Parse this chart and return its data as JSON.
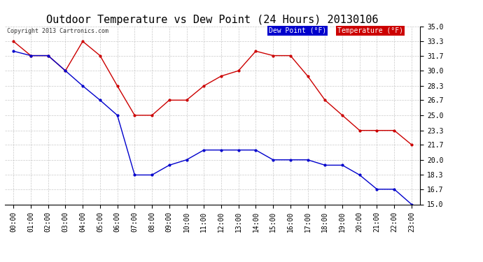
{
  "title": "Outdoor Temperature vs Dew Point (24 Hours) 20130106",
  "copyright": "Copyright 2013 Cartronics.com",
  "hours": [
    "00:00",
    "01:00",
    "02:00",
    "03:00",
    "04:00",
    "05:00",
    "06:00",
    "07:00",
    "08:00",
    "09:00",
    "10:00",
    "11:00",
    "12:00",
    "13:00",
    "14:00",
    "15:00",
    "16:00",
    "17:00",
    "18:00",
    "19:00",
    "20:00",
    "21:00",
    "22:00",
    "23:00"
  ],
  "temperature": [
    33.3,
    31.7,
    31.7,
    30.0,
    33.3,
    31.7,
    28.3,
    25.0,
    25.0,
    26.7,
    26.7,
    28.3,
    29.4,
    30.0,
    32.2,
    31.7,
    31.7,
    29.4,
    26.7,
    25.0,
    23.3,
    23.3,
    23.3,
    21.7
  ],
  "dew_point": [
    32.2,
    31.7,
    31.7,
    30.0,
    28.3,
    26.7,
    25.0,
    18.3,
    18.3,
    19.4,
    20.0,
    21.1,
    21.1,
    21.1,
    21.1,
    20.0,
    20.0,
    20.0,
    19.4,
    19.4,
    18.3,
    16.7,
    16.7,
    15.0
  ],
  "temp_color": "#cc0000",
  "dew_color": "#0000cc",
  "ylim": [
    15.0,
    35.0
  ],
  "yticks": [
    15.0,
    16.7,
    18.3,
    20.0,
    21.7,
    23.3,
    25.0,
    26.7,
    28.3,
    30.0,
    31.7,
    33.3,
    35.0
  ],
  "bg_color": "#ffffff",
  "plot_bg_color": "#ffffff",
  "grid_color": "#bbbbbb",
  "title_fontsize": 11,
  "tick_fontsize": 7,
  "copyright_fontsize": 6,
  "legend_fontsize": 7,
  "legend_dew_label": "Dew Point (°F)",
  "legend_temp_label": "Temperature (°F)"
}
